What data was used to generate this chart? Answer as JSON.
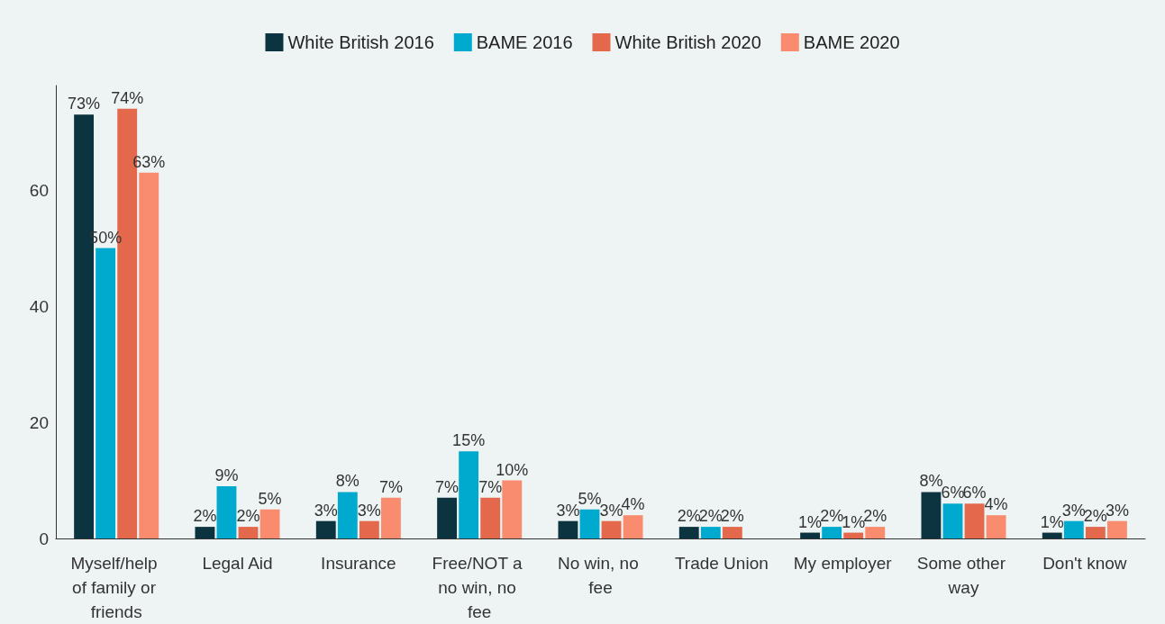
{
  "chart_data": {
    "type": "bar",
    "categories": [
      "Myself/help of family or friends",
      "Legal Aid",
      "Insurance",
      "Free/NOT a no win, no fee",
      "No win, no fee",
      "Trade Union",
      "My employer",
      "Some other way",
      "Don't know"
    ],
    "series": [
      {
        "name": "White British 2016",
        "color": "#0b3440",
        "values": [
          73,
          2,
          3,
          7,
          3,
          2,
          1,
          8,
          1
        ],
        "value_labels": [
          "73%",
          "2%",
          "3%",
          "7%",
          "3%",
          "2%",
          "1%",
          "8%",
          "1%"
        ]
      },
      {
        "name": "BAME 2016",
        "color": "#00a9ce",
        "values": [
          50,
          9,
          8,
          15,
          5,
          2,
          2,
          6,
          3
        ],
        "value_labels": [
          "50%",
          "9%",
          "8%",
          "15%",
          "5%",
          "2%",
          "2%",
          "6%",
          "3%"
        ]
      },
      {
        "name": "White British 2020",
        "color": "#e4694c",
        "values": [
          74,
          2,
          3,
          7,
          3,
          2,
          1,
          6,
          2
        ],
        "value_labels": [
          "74%",
          "2%",
          "3%",
          "7%",
          "3%",
          "2%",
          "1%",
          "6%",
          "2%"
        ]
      },
      {
        "name": "BAME 2020",
        "color": "#f98b6f",
        "values": [
          63,
          5,
          7,
          10,
          4,
          null,
          2,
          4,
          3
        ],
        "value_labels": [
          "63%",
          "5%",
          "7%",
          "10%",
          "4%",
          null,
          "2%",
          "4%",
          "3%"
        ]
      }
    ],
    "ylim": [
      0,
      78
    ],
    "yticks": [
      0,
      20,
      40,
      60
    ],
    "grid": false,
    "legend": "top"
  }
}
